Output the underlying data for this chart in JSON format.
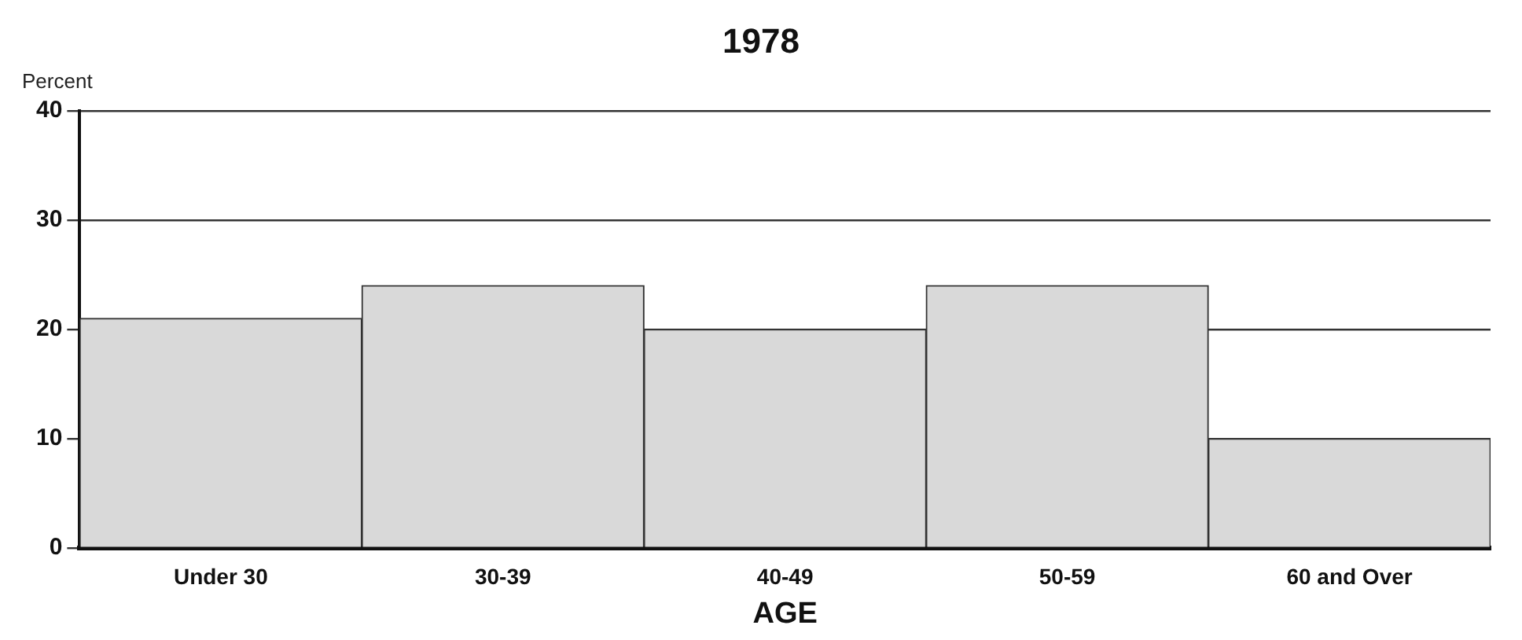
{
  "chart_data": {
    "type": "bar",
    "title": "1978",
    "xlabel": "AGE",
    "ylabel": "Percent",
    "categories": [
      "Under 30",
      "30-39",
      "40-49",
      "50-59",
      "60 and Over"
    ],
    "values": [
      21,
      24,
      20,
      24,
      10
    ],
    "color": "#d9d9d9",
    "ylim": [
      0,
      40
    ],
    "yticks": [
      0,
      10,
      20,
      30,
      40
    ],
    "grid": "y",
    "legend": false
  }
}
